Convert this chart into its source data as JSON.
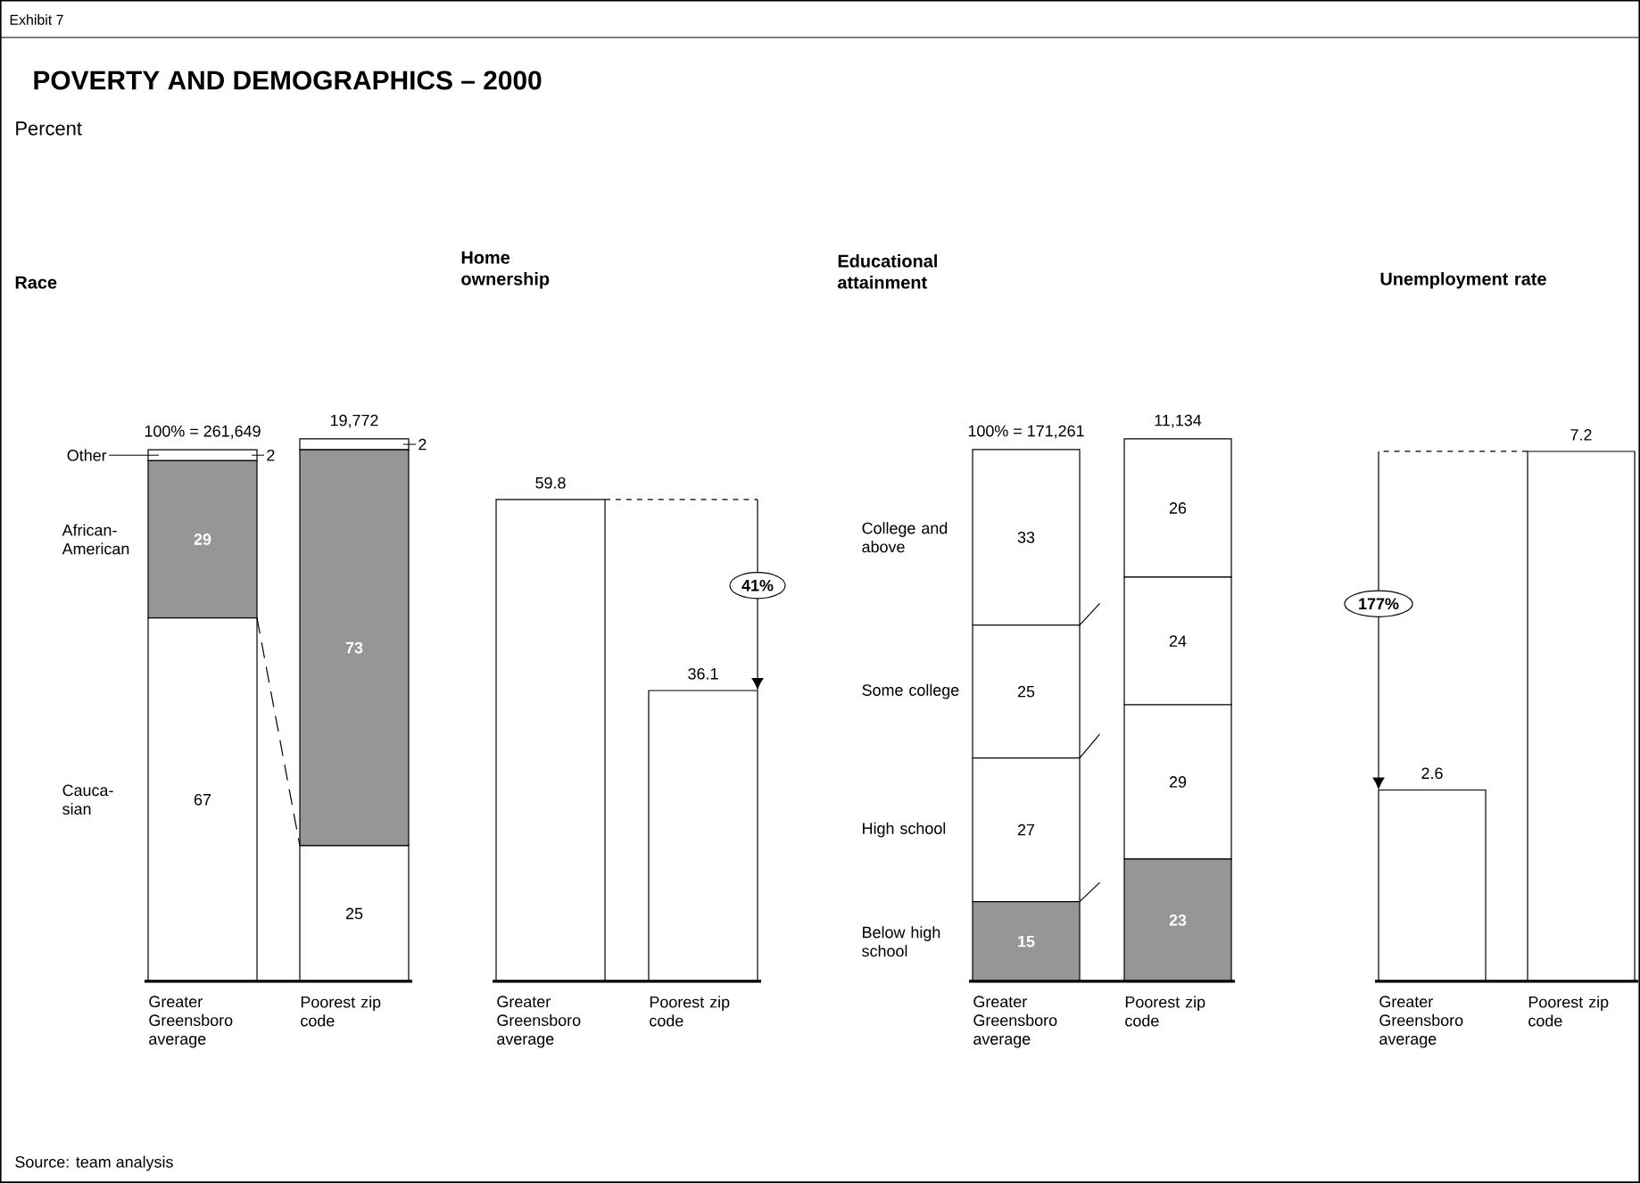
{
  "chart_data": [
    {
      "type": "other",
      "title": "POVERTY AND DEMOGRAPHICS – 2000",
      "subtitle": "Percent",
      "annotations": [
        "Exhibit 7",
        "Source: team analysis"
      ]
    },
    {
      "type": "bar",
      "title": "Race",
      "stacked": true,
      "data_labels": true,
      "categories": [
        "Greater Greensboro average",
        "Poorest zip code"
      ],
      "series": [
        {
          "name": "Cauca-sian",
          "color": "#ffffff",
          "values": [
            67,
            25
          ]
        },
        {
          "name": "African-American",
          "color": "#969696",
          "values": [
            29,
            73
          ]
        },
        {
          "name": "Other",
          "color": "#ffffff",
          "values": [
            2,
            2
          ]
        }
      ],
      "annotations": [
        "100% = 261,649",
        "19,772"
      ]
    },
    {
      "type": "bar",
      "title": "Home ownership",
      "data_labels": true,
      "categories": [
        "Greater Greensboro average",
        "Poorest zip code"
      ],
      "values": [
        59.8,
        36.1
      ],
      "color": "#ffffff",
      "annotations": [
        "41%"
      ]
    },
    {
      "type": "bar",
      "title": "Educational attainment",
      "stacked": true,
      "data_labels": true,
      "categories": [
        "Greater Greensboro average",
        "Poorest zip code"
      ],
      "series": [
        {
          "name": "Below high school",
          "color": "#969696",
          "values": [
            15,
            23
          ]
        },
        {
          "name": "High school",
          "color": "#ffffff",
          "values": [
            27,
            29
          ]
        },
        {
          "name": "Some college",
          "color": "#ffffff",
          "values": [
            25,
            24
          ]
        },
        {
          "name": "College and above",
          "color": "#ffffff",
          "values": [
            33,
            26
          ]
        }
      ],
      "annotations": [
        "100% = 171,261",
        "11,134"
      ]
    },
    {
      "type": "bar",
      "title": "Unemployment rate",
      "data_labels": true,
      "categories": [
        "Greater Greensboro average",
        "Poorest zip code"
      ],
      "values": [
        2.6,
        7.2
      ],
      "color": "#ffffff",
      "annotations": [
        "177%"
      ]
    }
  ]
}
